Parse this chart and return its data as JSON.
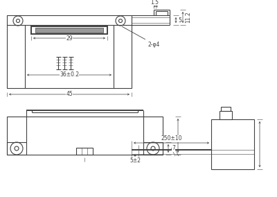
{
  "lc": "#404040",
  "lw": 0.8,
  "lw2": 1.4,
  "lw05": 0.4,
  "fs": 5.5,
  "dc": "#404040"
}
